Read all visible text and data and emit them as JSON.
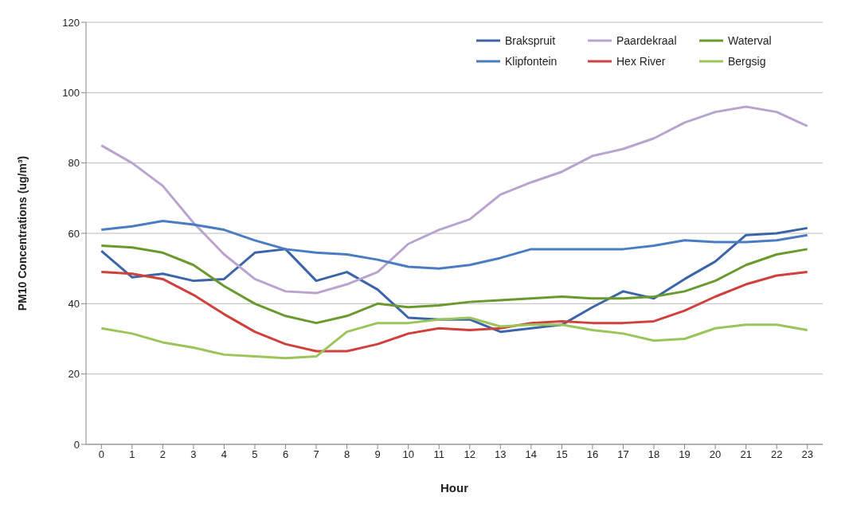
{
  "chart_data": {
    "type": "line",
    "xlabel": "Hour",
    "ylabel": "PM10 Concentrations (ug/m³)",
    "x": [
      0,
      1,
      2,
      3,
      4,
      5,
      6,
      7,
      8,
      9,
      10,
      11,
      12,
      13,
      14,
      15,
      16,
      17,
      18,
      19,
      20,
      21,
      22,
      23
    ],
    "xlim": [
      -0.5,
      23.5
    ],
    "xticks": [
      0,
      1,
      2,
      3,
      4,
      5,
      6,
      7,
      8,
      9,
      10,
      11,
      12,
      13,
      14,
      15,
      16,
      17,
      18,
      19,
      20,
      21,
      22,
      23
    ],
    "ylim": [
      0,
      120
    ],
    "yticks": [
      0,
      20,
      40,
      60,
      80,
      100,
      120
    ],
    "grid": "y",
    "legend": "top right",
    "marker": "none",
    "line_style": "solid",
    "series": [
      {
        "name": "Brakspruit",
        "color": "#3c64a8",
        "values": [
          55,
          47.5,
          48.5,
          46.5,
          47,
          54.5,
          55.5,
          46.5,
          49,
          44,
          36,
          35.5,
          35.5,
          32,
          33,
          34,
          39,
          43.5,
          41.5,
          47,
          52,
          59.5,
          60,
          61.5
        ]
      },
      {
        "name": "Paardekraal",
        "color": "#b9a4d0",
        "values": [
          85,
          80,
          73.5,
          63,
          54,
          47,
          43.5,
          43,
          45.5,
          49,
          57,
          61,
          64,
          71,
          74.5,
          77.5,
          82,
          84,
          87,
          91.5,
          94.5,
          96,
          94.5,
          90.5
        ]
      },
      {
        "name": "Waterval",
        "color": "#6a9a2e",
        "values": [
          56.5,
          56,
          54.5,
          51,
          45,
          40,
          36.5,
          34.5,
          36.5,
          40,
          39,
          39.5,
          40.5,
          41,
          41.5,
          42,
          41.5,
          41.5,
          42,
          43.5,
          46.5,
          51,
          54,
          55.5
        ]
      },
      {
        "name": "Klipfontein",
        "color": "#4a7cc4",
        "values": [
          61,
          62,
          63.5,
          62.5,
          61,
          58,
          55.5,
          54.5,
          54,
          52.5,
          50.5,
          50,
          51,
          53,
          55.5,
          55.5,
          55.5,
          55.5,
          56.5,
          58,
          57.5,
          57.5,
          58,
          59.5
        ]
      },
      {
        "name": "Hex River",
        "color": "#d0403c",
        "values": [
          49,
          48.5,
          47,
          42.5,
          37,
          32,
          28.5,
          26.5,
          26.5,
          28.5,
          31.5,
          33,
          32.5,
          33,
          34.5,
          35,
          34.5,
          34.5,
          35,
          38,
          42,
          45.5,
          48,
          49
        ]
      },
      {
        "name": "Bergsig",
        "color": "#9bc45a",
        "values": [
          33,
          31.5,
          29,
          27.5,
          25.5,
          25,
          24.5,
          25,
          32,
          34.5,
          34.5,
          35.5,
          36,
          33.5,
          34,
          34,
          32.5,
          31.5,
          29.5,
          30,
          33,
          34,
          34,
          32.5
        ]
      }
    ]
  }
}
